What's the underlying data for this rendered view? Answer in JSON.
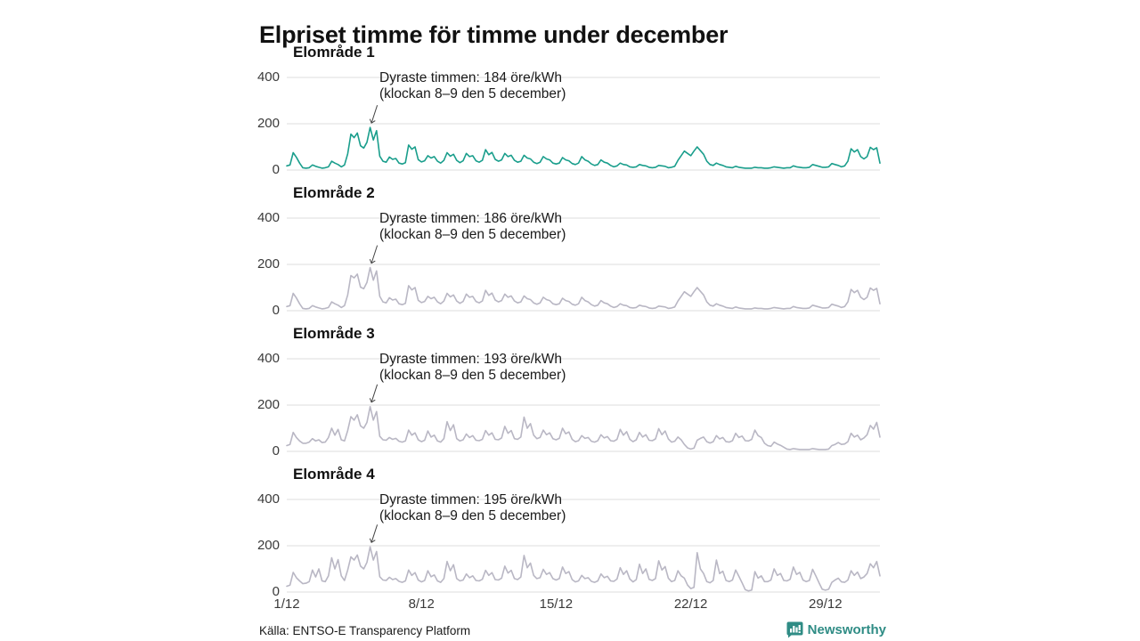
{
  "title": "Elpriset timme för timme under december",
  "footer": {
    "source": "Källa: ENTSO-E Transparency Platform"
  },
  "brand": {
    "name": "Newsworthy",
    "color": "#2f8c85"
  },
  "axis": {
    "y_ticks": [
      "400",
      "200",
      "0"
    ],
    "x_ticks": [
      "1/12",
      "8/12",
      "15/12",
      "22/12",
      "29/12"
    ],
    "x_tick_days": [
      0,
      7,
      14,
      21,
      28
    ]
  },
  "chart_data": [
    {
      "type": "line",
      "title": "Elområde 1",
      "unit": "öre/kWh",
      "color": "#1a9e8c",
      "ylim": [
        0,
        400
      ],
      "x_range": [
        "1/12",
        "31/12"
      ],
      "sampling": "4h estimates",
      "peak": {
        "value": 184,
        "sample_index": 26
      },
      "annotation": {
        "line1": "Dyraste timmen: 184 öre/kWh",
        "line2": "(klockan 8–9 den 5 december)"
      },
      "values_4h": [
        [
          18,
          22,
          75,
          55,
          30,
          10
        ],
        [
          8,
          10,
          22,
          16,
          12,
          8
        ],
        [
          10,
          14,
          38,
          30,
          24,
          14
        ],
        [
          22,
          70,
          155,
          140,
          160,
          105
        ],
        [
          95,
          120,
          184,
          130,
          170,
          60
        ],
        [
          38,
          34,
          56,
          46,
          50,
          30
        ],
        [
          26,
          32,
          108,
          90,
          100,
          45
        ],
        [
          35,
          40,
          62,
          52,
          58,
          38
        ],
        [
          30,
          42,
          75,
          60,
          68,
          42
        ],
        [
          32,
          40,
          72,
          58,
          62,
          40
        ],
        [
          34,
          42,
          88,
          66,
          76,
          46
        ],
        [
          38,
          44,
          72,
          58,
          64,
          42
        ],
        [
          34,
          38,
          64,
          52,
          48,
          34
        ],
        [
          28,
          34,
          58,
          48,
          44,
          30
        ],
        [
          26,
          30,
          54,
          44,
          40,
          28
        ],
        [
          24,
          30,
          58,
          44,
          38,
          26
        ],
        [
          20,
          24,
          44,
          34,
          30,
          20
        ],
        [
          14,
          18,
          30,
          24,
          22,
          14
        ],
        [
          12,
          14,
          24,
          20,
          18,
          12
        ],
        [
          10,
          12,
          20,
          18,
          16,
          10
        ],
        [
          12,
          16,
          42,
          62,
          82,
          72
        ],
        [
          62,
          82,
          100,
          84,
          68,
          38
        ],
        [
          24,
          20,
          30,
          24,
          20,
          14
        ],
        [
          12,
          10,
          16,
          12,
          10,
          8
        ],
        [
          8,
          8,
          12,
          10,
          10,
          8
        ],
        [
          8,
          10,
          14,
          12,
          10,
          8
        ],
        [
          10,
          10,
          18,
          14,
          12,
          10
        ],
        [
          10,
          12,
          24,
          20,
          16,
          12
        ],
        [
          12,
          14,
          28,
          24,
          20,
          14
        ],
        [
          18,
          38,
          92,
          78,
          88,
          58
        ],
        [
          48,
          58,
          98,
          88,
          96,
          30
        ]
      ]
    },
    {
      "type": "line",
      "title": "Elområde 2",
      "unit": "öre/kWh",
      "color": "#b9b7c4",
      "ylim": [
        0,
        400
      ],
      "x_range": [
        "1/12",
        "31/12"
      ],
      "sampling": "4h estimates",
      "peak": {
        "value": 186,
        "sample_index": 26
      },
      "annotation": {
        "line1": "Dyraste timmen: 186 öre/kWh",
        "line2": "(klockan 8–9 den 5 december)"
      },
      "values_4h": [
        [
          18,
          22,
          75,
          55,
          30,
          10
        ],
        [
          8,
          10,
          22,
          16,
          12,
          8
        ],
        [
          10,
          14,
          38,
          30,
          24,
          14
        ],
        [
          22,
          68,
          152,
          142,
          158,
          102
        ],
        [
          95,
          122,
          186,
          132,
          172,
          62
        ],
        [
          38,
          34,
          56,
          46,
          50,
          30
        ],
        [
          26,
          32,
          108,
          90,
          100,
          45
        ],
        [
          35,
          40,
          62,
          52,
          58,
          38
        ],
        [
          30,
          42,
          75,
          60,
          68,
          42
        ],
        [
          32,
          40,
          72,
          58,
          62,
          40
        ],
        [
          34,
          42,
          88,
          66,
          76,
          46
        ],
        [
          38,
          44,
          72,
          58,
          64,
          42
        ],
        [
          34,
          38,
          64,
          52,
          48,
          34
        ],
        [
          28,
          34,
          58,
          48,
          44,
          30
        ],
        [
          26,
          30,
          54,
          44,
          40,
          28
        ],
        [
          24,
          30,
          58,
          44,
          38,
          26
        ],
        [
          20,
          24,
          44,
          34,
          30,
          20
        ],
        [
          14,
          18,
          30,
          24,
          22,
          14
        ],
        [
          12,
          14,
          24,
          20,
          18,
          12
        ],
        [
          10,
          12,
          20,
          18,
          16,
          10
        ],
        [
          12,
          16,
          42,
          62,
          82,
          72
        ],
        [
          62,
          82,
          100,
          84,
          68,
          38
        ],
        [
          24,
          20,
          30,
          24,
          20,
          14
        ],
        [
          12,
          10,
          16,
          12,
          10,
          8
        ],
        [
          8,
          8,
          12,
          10,
          10,
          8
        ],
        [
          8,
          10,
          14,
          12,
          10,
          8
        ],
        [
          10,
          10,
          18,
          14,
          12,
          10
        ],
        [
          10,
          12,
          24,
          20,
          16,
          12
        ],
        [
          12,
          14,
          28,
          24,
          20,
          14
        ],
        [
          18,
          38,
          92,
          78,
          88,
          58
        ],
        [
          48,
          58,
          98,
          88,
          96,
          30
        ]
      ]
    },
    {
      "type": "line",
      "title": "Elområde 3",
      "unit": "öre/kWh",
      "color": "#b9b7c4",
      "ylim": [
        0,
        400
      ],
      "x_range": [
        "1/12",
        "31/12"
      ],
      "sampling": "4h estimates",
      "peak": {
        "value": 193,
        "sample_index": 26
      },
      "annotation": {
        "line1": "Dyraste timmen: 193 öre/kWh",
        "line2": "(klockan 8–9 den 5 december)"
      },
      "values_4h": [
        [
          25,
          30,
          82,
          60,
          45,
          35
        ],
        [
          35,
          40,
          55,
          45,
          50,
          38
        ],
        [
          40,
          60,
          100,
          70,
          95,
          50
        ],
        [
          45,
          90,
          150,
          135,
          158,
          110
        ],
        [
          100,
          125,
          193,
          135,
          172,
          65
        ],
        [
          50,
          48,
          60,
          52,
          56,
          44
        ],
        [
          40,
          45,
          92,
          70,
          80,
          50
        ],
        [
          42,
          48,
          88,
          62,
          70,
          45
        ],
        [
          40,
          55,
          128,
          90,
          115,
          55
        ],
        [
          45,
          50,
          75,
          60,
          68,
          48
        ],
        [
          46,
          52,
          90,
          70,
          80,
          52
        ],
        [
          50,
          58,
          108,
          78,
          90,
          55
        ],
        [
          52,
          62,
          148,
          100,
          120,
          70
        ],
        [
          55,
          60,
          92,
          72,
          80,
          55
        ],
        [
          50,
          56,
          100,
          76,
          84,
          52
        ],
        [
          42,
          46,
          68,
          56,
          60,
          44
        ],
        [
          40,
          46,
          72,
          58,
          64,
          46
        ],
        [
          44,
          52,
          95,
          70,
          85,
          52
        ],
        [
          42,
          50,
          82,
          62,
          72,
          48
        ],
        [
          46,
          54,
          98,
          72,
          88,
          54
        ],
        [
          40,
          44,
          62,
          50,
          30,
          15
        ],
        [
          10,
          14,
          48,
          56,
          62,
          42
        ],
        [
          36,
          42,
          68,
          54,
          60,
          42
        ],
        [
          40,
          46,
          78,
          60,
          66,
          46
        ],
        [
          45,
          52,
          92,
          68,
          60,
          35
        ],
        [
          25,
          22,
          40,
          32,
          26,
          18
        ],
        [
          10,
          8,
          12,
          10,
          8,
          8
        ],
        [
          8,
          8,
          12,
          10,
          8,
          8
        ],
        [
          8,
          10,
          25,
          30,
          38,
          30
        ],
        [
          32,
          42,
          78,
          62,
          70,
          50
        ],
        [
          58,
          72,
          112,
          96,
          125,
          62
        ]
      ]
    },
    {
      "type": "line",
      "title": "Elområde 4",
      "unit": "öre/kWh",
      "color": "#b9b7c4",
      "ylim": [
        0,
        400
      ],
      "x_range": [
        "1/12",
        "31/12"
      ],
      "sampling": "4h estimates",
      "peak": {
        "value": 195,
        "sample_index": 26
      },
      "annotation": {
        "line1": "Dyraste timmen: 195 öre/kWh",
        "line2": "(klockan 8–9 den 5 december)"
      },
      "values_4h": [
        [
          25,
          30,
          85,
          62,
          48,
          36
        ],
        [
          38,
          45,
          95,
          65,
          100,
          48
        ],
        [
          45,
          70,
          148,
          100,
          140,
          70
        ],
        [
          50,
          95,
          152,
          138,
          160,
          112
        ],
        [
          100,
          128,
          195,
          138,
          175,
          66
        ],
        [
          52,
          50,
          64,
          54,
          58,
          46
        ],
        [
          42,
          48,
          95,
          72,
          84,
          52
        ],
        [
          44,
          50,
          92,
          66,
          74,
          48
        ],
        [
          42,
          58,
          132,
          92,
          118,
          58
        ],
        [
          48,
          52,
          78,
          62,
          70,
          50
        ],
        [
          48,
          55,
          94,
          72,
          84,
          54
        ],
        [
          52,
          60,
          112,
          82,
          94,
          58
        ],
        [
          54,
          65,
          158,
          105,
          125,
          72
        ],
        [
          58,
          62,
          98,
          76,
          84,
          58
        ],
        [
          52,
          58,
          108,
          80,
          88,
          54
        ],
        [
          44,
          48,
          72,
          58,
          62,
          46
        ],
        [
          42,
          48,
          78,
          62,
          68,
          48
        ],
        [
          46,
          56,
          105,
          76,
          92,
          56
        ],
        [
          44,
          54,
          120,
          80,
          100,
          55
        ],
        [
          50,
          58,
          135,
          95,
          110,
          60
        ],
        [
          45,
          50,
          92,
          70,
          60,
          30
        ],
        [
          15,
          20,
          170,
          100,
          80,
          45
        ],
        [
          40,
          50,
          138,
          80,
          90,
          50
        ],
        [
          45,
          52,
          95,
          68,
          40,
          10
        ],
        [
          5,
          8,
          88,
          60,
          70,
          45
        ],
        [
          45,
          52,
          100,
          72,
          80,
          50
        ],
        [
          48,
          55,
          108,
          76,
          85,
          52
        ],
        [
          45,
          50,
          98,
          70,
          40,
          12
        ],
        [
          8,
          12,
          42,
          52,
          60,
          44
        ],
        [
          42,
          52,
          92,
          72,
          86,
          58
        ],
        [
          65,
          80,
          122,
          105,
          132,
          70
        ]
      ]
    }
  ]
}
